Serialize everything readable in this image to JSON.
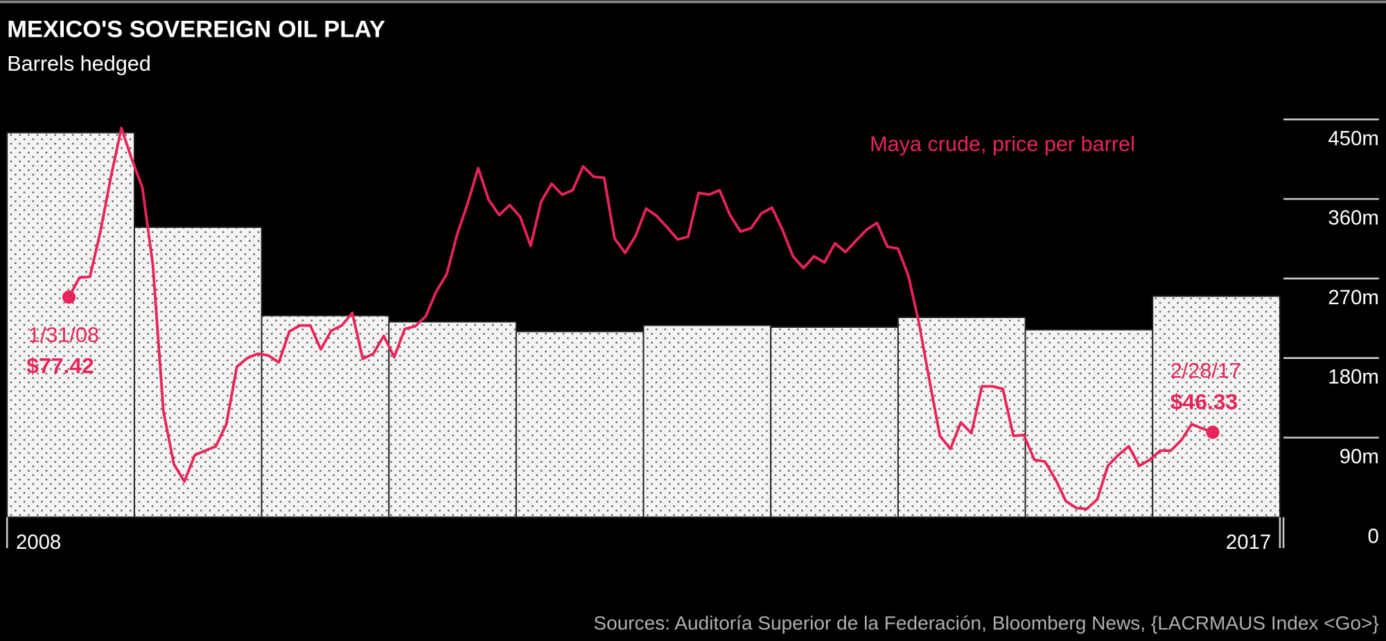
{
  "chart_data": {
    "type": "bar",
    "title": "MEXICO'S SOVEREIGN OIL PLAY",
    "subtitle": "Barrels hedged",
    "source": "Sources: Auditoría Superior de la Federación, Bloomberg News, {LACRMAUS Index <Go>}",
    "categories": [
      "2008",
      null,
      null,
      null,
      null,
      null,
      null,
      null,
      null,
      "2017"
    ],
    "ylim": [
      0,
      450
    ],
    "yticks": [
      0,
      {
        "value": 90,
        "label": "90m"
      },
      {
        "value": 180,
        "label": "180m"
      },
      {
        "value": 270,
        "label": "270m"
      },
      {
        "value": 360,
        "label": "360m"
      },
      {
        "value": 450,
        "label": "450m"
      }
    ],
    "y2lim": [
      26.8,
      118.3
    ],
    "series": [
      {
        "type": "bar",
        "color": "#f2f2f2",
        "values": [
          435,
          328,
          228,
          221,
          210,
          217,
          215,
          226,
          212,
          250
        ]
      },
      {
        "type": "line",
        "name": "Maya crude, price per barrel",
        "color": "#e8245a",
        "axis": "y2",
        "x": [
          "2008-01",
          "2008-02",
          "2008-03",
          "2008-04",
          "2008-05",
          "2008-06",
          "2008-07",
          "2008-08",
          "2008-09",
          "2008-10",
          "2008-11",
          "2008-12",
          "2009-01",
          "2009-02",
          "2009-03",
          "2009-04",
          "2009-05",
          "2009-06",
          "2009-07",
          "2009-08",
          "2009-09",
          "2009-10",
          "2009-11",
          "2009-12",
          "2010-01",
          "2010-02",
          "2010-03",
          "2010-04",
          "2010-05",
          "2010-06",
          "2010-07",
          "2010-08",
          "2010-09",
          "2010-10",
          "2010-11",
          "2010-12",
          "2011-01",
          "2011-02",
          "2011-03",
          "2011-04",
          "2011-05",
          "2011-06",
          "2011-07",
          "2011-08",
          "2011-09",
          "2011-10",
          "2011-11",
          "2011-12",
          "2012-01",
          "2012-02",
          "2012-03",
          "2012-04",
          "2012-05",
          "2012-06",
          "2012-07",
          "2012-08",
          "2012-09",
          "2012-10",
          "2012-11",
          "2012-12",
          "2013-01",
          "2013-02",
          "2013-03",
          "2013-04",
          "2013-05",
          "2013-06",
          "2013-07",
          "2013-08",
          "2013-09",
          "2013-10",
          "2013-11",
          "2013-12",
          "2014-01",
          "2014-02",
          "2014-03",
          "2014-04",
          "2014-05",
          "2014-06",
          "2014-07",
          "2014-08",
          "2014-09",
          "2014-10",
          "2014-11",
          "2014-12",
          "2015-01",
          "2015-02",
          "2015-03",
          "2015-04",
          "2015-05",
          "2015-06",
          "2015-07",
          "2015-08",
          "2015-09",
          "2015-10",
          "2015-11",
          "2015-12",
          "2016-01",
          "2016-02",
          "2016-03",
          "2016-04",
          "2016-05",
          "2016-06",
          "2016-07",
          "2016-08",
          "2016-09",
          "2016-10",
          "2016-11",
          "2016-12",
          "2017-01",
          "2017-02"
        ],
        "values": [
          77.42,
          81.9,
          82.1,
          92.5,
          105.1,
          116.3,
          109.1,
          102.6,
          84.8,
          51.2,
          39.0,
          35.0,
          41.1,
          42.1,
          43.1,
          48.2,
          61.4,
          63.4,
          64.4,
          64.0,
          62.4,
          69.5,
          70.9,
          70.9,
          65.4,
          69.7,
          70.9,
          73.8,
          63.2,
          64.4,
          68.5,
          63.6,
          70.1,
          70.7,
          73.0,
          78.7,
          82.7,
          91.9,
          99.0,
          107.1,
          99.8,
          96.3,
          98.6,
          95.9,
          89.2,
          99.4,
          103.5,
          101.0,
          102.0,
          107.5,
          105.1,
          104.9,
          90.9,
          87.6,
          91.5,
          97.8,
          96.1,
          93.5,
          90.7,
          91.3,
          101.4,
          101.0,
          102.0,
          96.3,
          92.5,
          93.3,
          96.7,
          98.0,
          92.9,
          86.8,
          84.1,
          86.8,
          85.4,
          89.8,
          87.8,
          90.4,
          92.9,
          94.5,
          89.0,
          88.6,
          82.3,
          71.5,
          58.3,
          45.5,
          42.5,
          48.6,
          46.1,
          56.9,
          56.9,
          56.3,
          45.5,
          45.7,
          40.0,
          39.6,
          35.6,
          30.5,
          28.9,
          28.7,
          30.9,
          38.6,
          41.1,
          43.1,
          38.6,
          40.0,
          42.1,
          42.1,
          44.5,
          48.2,
          47.2,
          46.33
        ]
      }
    ],
    "annotations": [
      {
        "date": "1/31/08",
        "price": "$77.42"
      },
      {
        "date": "2/28/17",
        "price": "$46.33"
      }
    ]
  }
}
